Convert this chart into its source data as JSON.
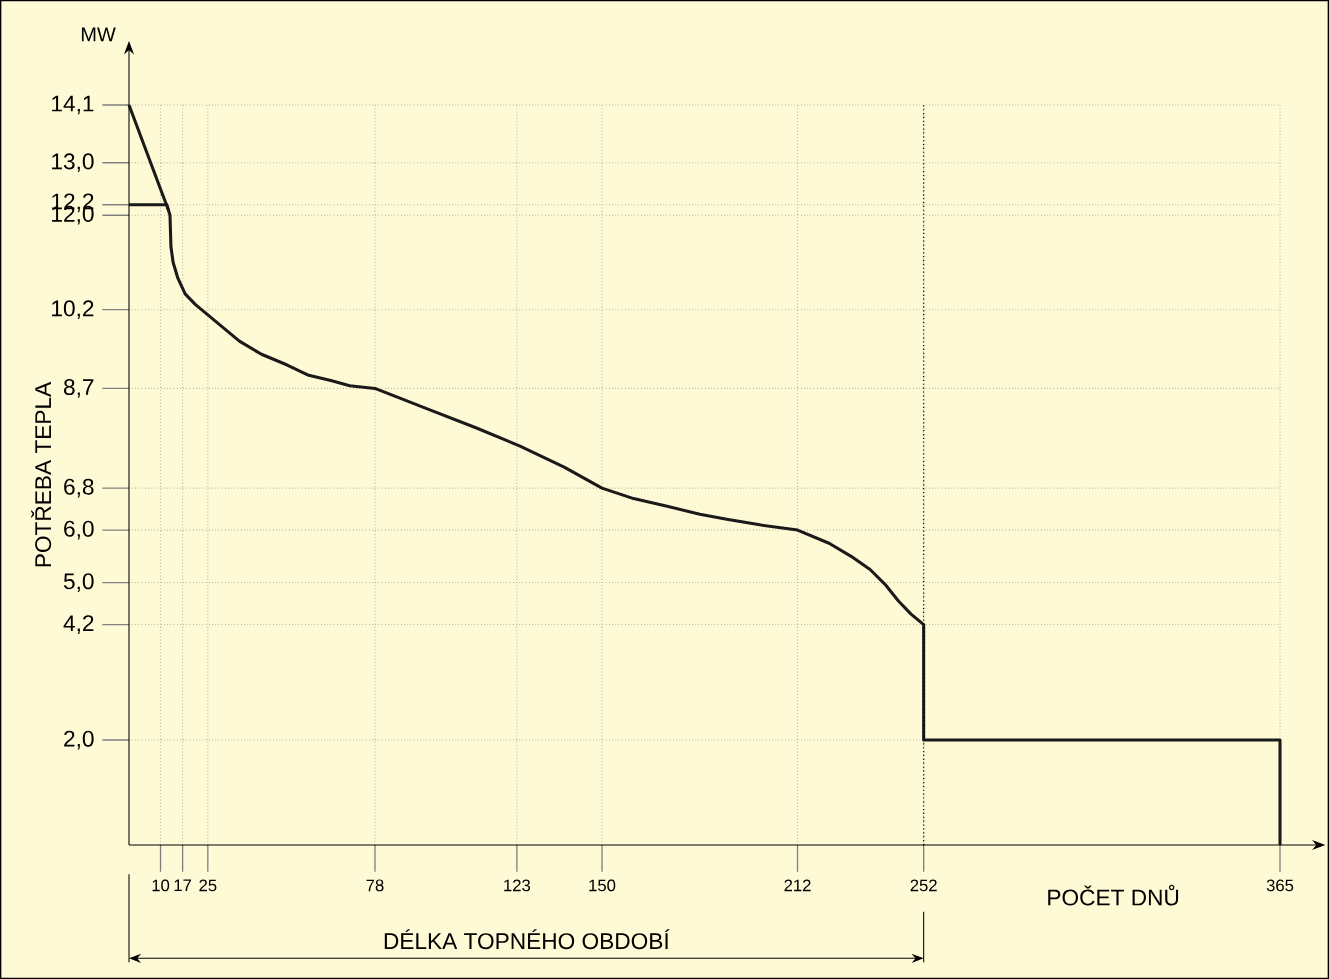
{
  "chart_data": {
    "type": "line",
    "xlabel": "POČET DNŮ",
    "ylabel": "POTŘEBA TEPLA",
    "annotations": [
      "MW"
    ],
    "series": [
      {
        "color": "#1a1a1a",
        "x": [
          0,
          12,
          13,
          13.3,
          14,
          15.5,
          17.8,
          21,
          25,
          30,
          35,
          42,
          50,
          57,
          64,
          70,
          78,
          95,
          110,
          124,
          138,
          150,
          160,
          171,
          181,
          190,
          200,
          212,
          222,
          229,
          235,
          240,
          244,
          248,
          252,
          252,
          365,
          365
        ],
        "values": [
          12.2,
          12.2,
          12.0,
          11.4,
          11.1,
          10.8,
          10.5,
          10.3,
          10.1,
          9.85,
          9.6,
          9.35,
          9.15,
          8.95,
          8.85,
          8.75,
          8.7,
          8.3,
          7.95,
          7.6,
          7.2,
          6.8,
          6.6,
          6.45,
          6.3,
          6.2,
          6.1,
          6.0,
          5.75,
          5.5,
          5.25,
          4.95,
          4.65,
          4.4,
          4.2,
          2.0,
          2.0,
          0
        ]
      },
      {
        "color": "#1a1a1a",
        "x": [
          0,
          12.5
        ],
        "values": [
          14.1,
          12.1
        ]
      }
    ],
    "xlim": [
      0,
      365
    ],
    "ylim": [
      0,
      14.1
    ],
    "xticks": [
      10,
      17,
      25,
      78,
      123,
      150,
      212,
      252,
      365
    ],
    "yticks": [
      {
        "value": 2.0,
        "label": "2,0"
      },
      {
        "value": 4.2,
        "label": "4,2"
      },
      {
        "value": 5.0,
        "label": "5,0"
      },
      {
        "value": 6.0,
        "label": "6,0"
      },
      {
        "value": 6.8,
        "label": "6,8"
      },
      {
        "value": 8.7,
        "label": "8,7"
      },
      {
        "value": 10.2,
        "label": "10,2"
      },
      {
        "value": 12.0,
        "label": "12,0"
      },
      {
        "value": 12.2,
        "label": "12,2"
      },
      {
        "value": 13.0,
        "label": "13,0"
      },
      {
        "value": 14.1,
        "label": "14,1"
      }
    ],
    "ref_lines": [
      {
        "axis": "x",
        "value": 252,
        "label": "DÉLKA TOPNÉHO OBDOBÍ",
        "line_style": "dotted"
      }
    ],
    "grid": true,
    "marker": "none",
    "line_style": "solid"
  }
}
